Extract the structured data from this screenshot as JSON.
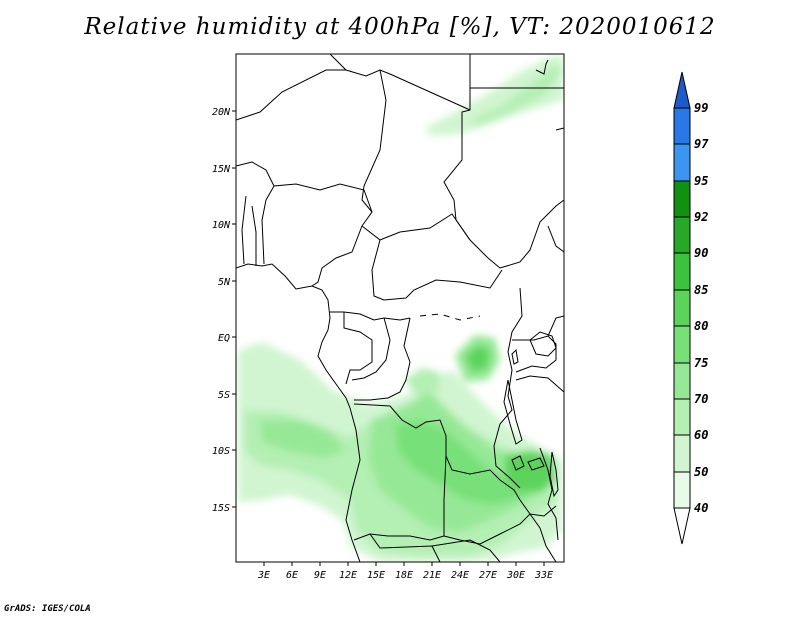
{
  "title": "Relative humidity at 400hPa [%], VT: 2020010612",
  "credit": "GrADS: IGES/COLA",
  "map": {
    "lon_range": [
      0,
      35
    ],
    "lat_range": [
      -20,
      25
    ],
    "lon_ticks": [
      "3E",
      "6E",
      "9E",
      "12E",
      "15E",
      "18E",
      "21E",
      "24E",
      "27E",
      "30E",
      "33E"
    ],
    "lat_ticks": [
      "20N",
      "15N",
      "10N",
      "5N",
      "EQ",
      "5S",
      "10S",
      "15S"
    ]
  },
  "colorbar": {
    "levels": [
      "99",
      "97",
      "95",
      "92",
      "90",
      "85",
      "80",
      "75",
      "70",
      "60",
      "50",
      "40"
    ],
    "colors": {
      "c40_50": "#e8fbe8",
      "c50_60": "#d0f5d0",
      "c60_70": "#b4efb4",
      "c70_75": "#96e896",
      "c75_80": "#78e078",
      "c80_85": "#5cd45c",
      "c85_90": "#3cc23c",
      "c90_92": "#28a828",
      "c92_95": "#129012",
      "c95_97": "#3c96f0",
      "c97_99": "#2878e6",
      "c99_100": "#1e5ac8",
      "below": "#ffffff"
    }
  }
}
